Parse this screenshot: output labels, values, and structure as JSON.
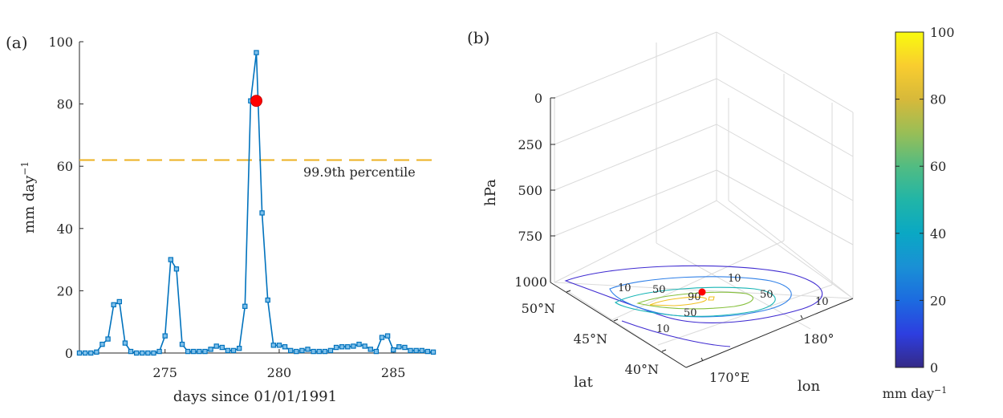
{
  "panel_a": {
    "tag": "(a)",
    "xlabel": "days since 01/01/1991",
    "ylabel_main": "mm day",
    "ylabel_sup": "−1",
    "percentile_label": "99.9th percentile",
    "colors": {
      "series": "#0072BD",
      "threshold": "#EDB120",
      "event": "#FF0000"
    }
  },
  "panel_b": {
    "tag": "(b)",
    "zlabel": "hPa",
    "latlabel": "lat",
    "lonlabel": "lon",
    "colorbar_label_main": "mm day",
    "colorbar_label_sup": "−1",
    "colorbar_ticks": [
      "0",
      "20",
      "40",
      "60",
      "80",
      "100"
    ],
    "z_ticks": [
      "0",
      "250",
      "500",
      "750",
      "1000"
    ],
    "lat_ticks": [
      "50°N",
      "45°N",
      "40°N"
    ],
    "lon_ticks": [
      "180°",
      "170°E"
    ],
    "contour_labels": [
      "10",
      "50",
      "90",
      "50",
      "50",
      "10",
      "10",
      "10"
    ],
    "contour_colors": [
      "#3F2BD1",
      "#2F80E8",
      "#17B5B5",
      "#86C03C",
      "#F0C020"
    ]
  },
  "chart_data": [
    {
      "type": "line",
      "xlabel": "days since 01/01/1991",
      "ylabel": "mm day⁻¹",
      "xlim": [
        271.25,
        286.75
      ],
      "ylim": [
        0,
        100
      ],
      "xticks": [
        275,
        280,
        285
      ],
      "yticks": [
        0,
        20,
        40,
        60,
        80,
        100
      ],
      "threshold": {
        "value": 62,
        "label": "99.9th percentile"
      },
      "event": {
        "x": 279.0,
        "y": 81
      },
      "series": [
        {
          "x": [
            271.25,
            271.5,
            271.75,
            272,
            272.25,
            272.5,
            272.75,
            273,
            273.25,
            273.5,
            273.75,
            274,
            274.25,
            274.5,
            274.75,
            275,
            275.25,
            275.5,
            275.75,
            276,
            276.25,
            276.5,
            276.75,
            277,
            277.25,
            277.5,
            277.75,
            278,
            278.25,
            278.5,
            278.75,
            279,
            279.25,
            279.5,
            279.75,
            280,
            280.25,
            280.5,
            280.75,
            281,
            281.25,
            281.5,
            281.75,
            282,
            282.25,
            282.5,
            282.75,
            283,
            283.25,
            283.5,
            283.75,
            284,
            284.25,
            284.5,
            284.75,
            285,
            285.25,
            285.5,
            285.75,
            286,
            286.25,
            286.5,
            286.75
          ],
          "values": [
            0,
            0,
            0,
            0.3,
            2.8,
            4.5,
            15.5,
            16.5,
            3.2,
            0.5,
            0,
            0,
            0,
            0,
            0.5,
            5.5,
            30,
            27,
            2.8,
            0.5,
            0.5,
            0.5,
            0.5,
            1.2,
            2.2,
            1.8,
            0.8,
            0.8,
            1.5,
            15,
            81,
            96.5,
            45,
            17,
            2.5,
            2.5,
            2,
            0.8,
            0.5,
            0.8,
            1.2,
            0.5,
            0.5,
            0.5,
            0.8,
            1.8,
            2,
            2,
            2.2,
            2.8,
            2.2,
            1.2,
            0.5,
            5,
            5.5,
            1,
            2,
            1.8,
            0.8,
            0.8,
            0.8,
            0.5,
            0.3
          ]
        }
      ]
    },
    {
      "type": "contour",
      "zlabel": "hPa",
      "zlim": [
        0,
        1000
      ],
      "xlabel": "lat",
      "ylabel": "lon",
      "colorbar": {
        "label": "mm day⁻¹",
        "range": [
          0,
          100
        ]
      },
      "contour_levels": [
        10,
        30,
        50,
        70,
        90
      ]
    }
  ]
}
